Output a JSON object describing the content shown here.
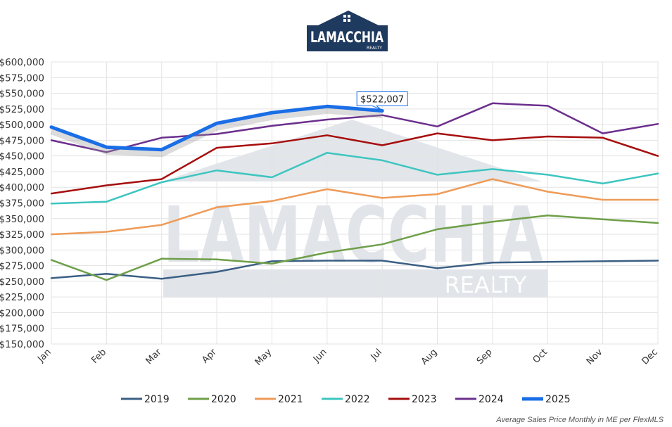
{
  "logo": {
    "name": "LAMACCHIA",
    "sub": "REALTY"
  },
  "watermark": {
    "name": "LAMACCHIA",
    "sub": "REALTY"
  },
  "footnote": "Average Sales Price Monthly in ME per FlexMLS",
  "callout": {
    "text": "$522,007",
    "series": "2025",
    "month": "Jul"
  },
  "chart_data": {
    "type": "line",
    "categories": [
      "Jan",
      "Feb",
      "Mar",
      "Apr",
      "May",
      "Jun",
      "Jul",
      "Aug",
      "Sep",
      "Oct",
      "Nov",
      "Dec"
    ],
    "ylim": [
      150000,
      600000
    ],
    "yticks": [
      600000,
      575000,
      550000,
      525000,
      500000,
      475000,
      450000,
      425000,
      400000,
      375000,
      350000,
      325000,
      300000,
      275000,
      250000,
      225000,
      200000,
      175000,
      150000
    ],
    "ytick_labels": [
      "$600,000",
      "$575,000",
      "$550,000",
      "$525,000",
      "$500,000",
      "$475,000",
      "$450,000",
      "$425,000",
      "$400,000",
      "$375,000",
      "$350,000",
      "$325,000",
      "$300,000",
      "$275,000",
      "$250,000",
      "$225,000",
      "$200,000",
      "$175,000",
      "$150,000"
    ],
    "grid": true,
    "legend_position": "bottom",
    "series": [
      {
        "name": "2019",
        "color": "#3b5f84",
        "values": [
          255000,
          262000,
          254000,
          265000,
          282000,
          283000,
          283000,
          271000,
          280000,
          281000,
          282000,
          283000
        ]
      },
      {
        "name": "2020",
        "color": "#6f9f49",
        "values": [
          284000,
          252000,
          286000,
          285000,
          278000,
          296000,
          309000,
          333000,
          345000,
          355000,
          349000,
          343000
        ]
      },
      {
        "name": "2021",
        "color": "#ee9b58",
        "values": [
          325000,
          329000,
          340000,
          368000,
          378000,
          397000,
          383000,
          389000,
          413000,
          393000,
          380000,
          380000
        ]
      },
      {
        "name": "2022",
        "color": "#3ec5c0",
        "values": [
          374000,
          377000,
          408000,
          427000,
          416000,
          455000,
          443000,
          420000,
          429000,
          420000,
          406000,
          422000
        ]
      },
      {
        "name": "2023",
        "color": "#a60d0d",
        "values": [
          390000,
          403000,
          413000,
          463000,
          470000,
          483000,
          467000,
          486000,
          475000,
          481000,
          479000,
          450000
        ]
      },
      {
        "name": "2024",
        "color": "#6b2f8d",
        "values": [
          475000,
          456000,
          479000,
          485000,
          498000,
          508000,
          515000,
          497000,
          534000,
          530000,
          486000,
          501000
        ]
      },
      {
        "name": "2025",
        "color": "#1a6ee6",
        "values": [
          496000,
          464000,
          460000,
          502000,
          519000,
          529000,
          522007,
          null,
          null,
          null,
          null,
          null
        ]
      }
    ]
  }
}
